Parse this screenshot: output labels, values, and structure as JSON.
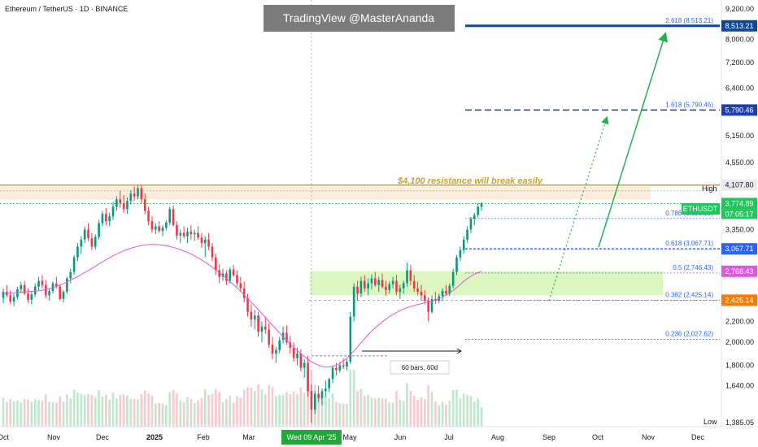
{
  "header": {
    "symbol_title": "Ethereum / TetherUS · 1D · BINANCE",
    "watermark": "TradingView @MasterAnanda"
  },
  "annotations": {
    "resistance_note": "$4,100 resistance will break easily",
    "range_measure": "60 bars, 60d",
    "date_highlight": "Wed 09 Apr '25",
    "high_label": "High",
    "low_label": "Low",
    "symbol_tag": "ETHUSDT",
    "countdown": "07:05:17"
  },
  "colors": {
    "up_candle": "#089981",
    "down_candle": "#f23645",
    "moving_average": "#e056e0",
    "resistance": "#c9a227",
    "support_zone": "#d7f5b8",
    "fib_line": "#2962ff",
    "target_line": "#0d47a1",
    "projection_arrow": "#22b14c"
  },
  "chart_data": {
    "type": "candlestick",
    "title": "Ethereum / TetherUS · 1D · BINANCE",
    "x_tick_labels": [
      "Oct",
      "Nov",
      "Dec",
      "2025",
      "Feb",
      "Mar",
      "Apr",
      "May",
      "Jun",
      "Jul",
      "Aug",
      "Sep",
      "Oct",
      "Nov",
      "Dec"
    ],
    "y_tick_labels": [
      "9,200.00",
      "8,000.00",
      "7,200.00",
      "6,400.00",
      "5,150.00",
      "4,550.00",
      "3,350.00",
      "2,200.00",
      "2,000.00",
      "1,800.00",
      "1,640.00",
      "1,385.05"
    ],
    "y_scale": "log",
    "ylim": [
      1385,
      9300
    ],
    "price_tags": [
      {
        "label": "8,513.21",
        "value": 8513.21,
        "color": "#0d47a1"
      },
      {
        "label": "5,790.46",
        "value": 5790.46,
        "color": "#1e3fae"
      },
      {
        "label": "4,107.80",
        "value": 4107.8,
        "color": "#e9e9ee"
      },
      {
        "label": "3,774.89",
        "value": 3774.89,
        "color": "#22c55e"
      },
      {
        "label": "3,067.71",
        "value": 3067.71,
        "color": "#2962ff"
      },
      {
        "label": "2,768.43",
        "value": 2768.43,
        "color": "#e056e0"
      },
      {
        "label": "2,425.14",
        "value": 2425.14,
        "color": "#f57c00"
      }
    ],
    "fib_levels": [
      {
        "label": "2.618 (8,513.21)",
        "value": 8513.21
      },
      {
        "label": "1.618 (5,790.46)",
        "value": 5790.46
      },
      {
        "label": "0.786 (3,525.13)",
        "value": 3525.13
      },
      {
        "label": "0.618 (3,067.71)",
        "value": 3067.71
      },
      {
        "label": "0.5 (2,746.43)",
        "value": 2746.43
      },
      {
        "label": "0.382 (2,425.14)",
        "value": 2425.14
      },
      {
        "label": "0.236 (2,027.62)",
        "value": 2027.62
      }
    ],
    "resistance_level": 4107.8,
    "current_price": 3774.89,
    "low_price": 1385.05,
    "candles": [
      {
        "o": 2450,
        "h": 2560,
        "l": 2390,
        "c": 2520
      },
      {
        "o": 2520,
        "h": 2600,
        "l": 2460,
        "c": 2480
      },
      {
        "o": 2480,
        "h": 2540,
        "l": 2380,
        "c": 2410
      },
      {
        "o": 2410,
        "h": 2500,
        "l": 2360,
        "c": 2460
      },
      {
        "o": 2460,
        "h": 2580,
        "l": 2430,
        "c": 2550
      },
      {
        "o": 2550,
        "h": 2640,
        "l": 2500,
        "c": 2600
      },
      {
        "o": 2600,
        "h": 2650,
        "l": 2480,
        "c": 2500
      },
      {
        "o": 2500,
        "h": 2560,
        "l": 2400,
        "c": 2430
      },
      {
        "o": 2430,
        "h": 2520,
        "l": 2380,
        "c": 2490
      },
      {
        "o": 2490,
        "h": 2620,
        "l": 2460,
        "c": 2580
      },
      {
        "o": 2580,
        "h": 2700,
        "l": 2540,
        "c": 2650
      },
      {
        "o": 2650,
        "h": 2720,
        "l": 2560,
        "c": 2600
      },
      {
        "o": 2600,
        "h": 2660,
        "l": 2450,
        "c": 2480
      },
      {
        "o": 2480,
        "h": 2560,
        "l": 2420,
        "c": 2530
      },
      {
        "o": 2530,
        "h": 2640,
        "l": 2500,
        "c": 2620
      },
      {
        "o": 2620,
        "h": 2700,
        "l": 2560,
        "c": 2580
      },
      {
        "o": 2580,
        "h": 2610,
        "l": 2420,
        "c": 2440
      },
      {
        "o": 2440,
        "h": 2540,
        "l": 2400,
        "c": 2520
      },
      {
        "o": 2520,
        "h": 2700,
        "l": 2500,
        "c": 2680
      },
      {
        "o": 2680,
        "h": 2800,
        "l": 2620,
        "c": 2760
      },
      {
        "o": 2760,
        "h": 2980,
        "l": 2720,
        "c": 2950
      },
      {
        "o": 2950,
        "h": 3150,
        "l": 2900,
        "c": 3100
      },
      {
        "o": 3100,
        "h": 3250,
        "l": 3000,
        "c": 3200
      },
      {
        "o": 3200,
        "h": 3400,
        "l": 3150,
        "c": 3350
      },
      {
        "o": 3350,
        "h": 3450,
        "l": 3180,
        "c": 3220
      },
      {
        "o": 3220,
        "h": 3300,
        "l": 3050,
        "c": 3100
      },
      {
        "o": 3100,
        "h": 3280,
        "l": 3060,
        "c": 3240
      },
      {
        "o": 3240,
        "h": 3500,
        "l": 3200,
        "c": 3450
      },
      {
        "o": 3450,
        "h": 3650,
        "l": 3400,
        "c": 3600
      },
      {
        "o": 3600,
        "h": 3700,
        "l": 3420,
        "c": 3480
      },
      {
        "o": 3480,
        "h": 3620,
        "l": 3400,
        "c": 3560
      },
      {
        "o": 3560,
        "h": 3800,
        "l": 3500,
        "c": 3720
      },
      {
        "o": 3720,
        "h": 3900,
        "l": 3650,
        "c": 3850
      },
      {
        "o": 3850,
        "h": 4000,
        "l": 3700,
        "c": 3780
      },
      {
        "o": 3780,
        "h": 3920,
        "l": 3620,
        "c": 3680
      },
      {
        "o": 3680,
        "h": 3880,
        "l": 3600,
        "c": 3820
      },
      {
        "o": 3820,
        "h": 4010,
        "l": 3760,
        "c": 3950
      },
      {
        "o": 3950,
        "h": 4080,
        "l": 3820,
        "c": 3900
      },
      {
        "o": 3900,
        "h": 4100,
        "l": 3850,
        "c": 4050
      },
      {
        "o": 4050,
        "h": 4107,
        "l": 3780,
        "c": 3850
      },
      {
        "o": 3850,
        "h": 3950,
        "l": 3600,
        "c": 3650
      },
      {
        "o": 3650,
        "h": 3720,
        "l": 3420,
        "c": 3480
      },
      {
        "o": 3480,
        "h": 3560,
        "l": 3300,
        "c": 3350
      },
      {
        "o": 3350,
        "h": 3450,
        "l": 3280,
        "c": 3400
      },
      {
        "o": 3400,
        "h": 3480,
        "l": 3300,
        "c": 3330
      },
      {
        "o": 3330,
        "h": 3420,
        "l": 3250,
        "c": 3380
      },
      {
        "o": 3380,
        "h": 3500,
        "l": 3340,
        "c": 3460
      },
      {
        "o": 3460,
        "h": 3720,
        "l": 3420,
        "c": 3680
      },
      {
        "o": 3680,
        "h": 3740,
        "l": 3400,
        "c": 3420
      },
      {
        "o": 3420,
        "h": 3480,
        "l": 3200,
        "c": 3260
      },
      {
        "o": 3260,
        "h": 3350,
        "l": 3150,
        "c": 3300
      },
      {
        "o": 3300,
        "h": 3400,
        "l": 3220,
        "c": 3250
      },
      {
        "o": 3250,
        "h": 3380,
        "l": 3150,
        "c": 3320
      },
      {
        "o": 3320,
        "h": 3420,
        "l": 3200,
        "c": 3280
      },
      {
        "o": 3280,
        "h": 3350,
        "l": 3180,
        "c": 3300
      },
      {
        "o": 3300,
        "h": 3400,
        "l": 3200,
        "c": 3230
      },
      {
        "o": 3230,
        "h": 3300,
        "l": 3080,
        "c": 3150
      },
      {
        "o": 3150,
        "h": 3250,
        "l": 2950,
        "c": 3200
      },
      {
        "o": 3200,
        "h": 3300,
        "l": 3050,
        "c": 3100
      },
      {
        "o": 3100,
        "h": 3150,
        "l": 2900,
        "c": 2950
      },
      {
        "o": 2950,
        "h": 3000,
        "l": 2720,
        "c": 2780
      },
      {
        "o": 2780,
        "h": 2860,
        "l": 2620,
        "c": 2700
      },
      {
        "o": 2700,
        "h": 2800,
        "l": 2650,
        "c": 2740
      },
      {
        "o": 2740,
        "h": 2780,
        "l": 2600,
        "c": 2650
      },
      {
        "o": 2650,
        "h": 2820,
        "l": 2620,
        "c": 2790
      },
      {
        "o": 2790,
        "h": 2850,
        "l": 2700,
        "c": 2720
      },
      {
        "o": 2720,
        "h": 2780,
        "l": 2580,
        "c": 2620
      },
      {
        "o": 2620,
        "h": 2700,
        "l": 2520,
        "c": 2560
      },
      {
        "o": 2560,
        "h": 2640,
        "l": 2400,
        "c": 2450
      },
      {
        "o": 2450,
        "h": 2500,
        "l": 2250,
        "c": 2300
      },
      {
        "o": 2300,
        "h": 2380,
        "l": 2150,
        "c": 2220
      },
      {
        "o": 2220,
        "h": 2320,
        "l": 2120,
        "c": 2260
      },
      {
        "o": 2260,
        "h": 2300,
        "l": 2050,
        "c": 2100
      },
      {
        "o": 2100,
        "h": 2200,
        "l": 2000,
        "c": 2150
      },
      {
        "o": 2150,
        "h": 2250,
        "l": 2080,
        "c": 2120
      },
      {
        "o": 2120,
        "h": 2180,
        "l": 1950,
        "c": 1980
      },
      {
        "o": 1980,
        "h": 2050,
        "l": 1850,
        "c": 1900
      },
      {
        "o": 1900,
        "h": 1960,
        "l": 1820,
        "c": 1930
      },
      {
        "o": 1930,
        "h": 2050,
        "l": 1900,
        "c": 2020
      },
      {
        "o": 2020,
        "h": 2150,
        "l": 1990,
        "c": 2090
      },
      {
        "o": 2090,
        "h": 2160,
        "l": 1980,
        "c": 2000
      },
      {
        "o": 2000,
        "h": 2060,
        "l": 1900,
        "c": 1950
      },
      {
        "o": 1950,
        "h": 2000,
        "l": 1830,
        "c": 1860
      },
      {
        "o": 1860,
        "h": 1950,
        "l": 1800,
        "c": 1900
      },
      {
        "o": 1900,
        "h": 1940,
        "l": 1750,
        "c": 1780
      },
      {
        "o": 1780,
        "h": 1850,
        "l": 1700,
        "c": 1820
      },
      {
        "o": 1820,
        "h": 1880,
        "l": 1560,
        "c": 1600
      },
      {
        "o": 1600,
        "h": 1650,
        "l": 1385,
        "c": 1470
      },
      {
        "o": 1470,
        "h": 1600,
        "l": 1440,
        "c": 1580
      },
      {
        "o": 1580,
        "h": 1640,
        "l": 1520,
        "c": 1550
      },
      {
        "o": 1550,
        "h": 1620,
        "l": 1500,
        "c": 1600
      },
      {
        "o": 1600,
        "h": 1680,
        "l": 1560,
        "c": 1620
      },
      {
        "o": 1620,
        "h": 1700,
        "l": 1590,
        "c": 1690
      },
      {
        "o": 1690,
        "h": 1800,
        "l": 1660,
        "c": 1780
      },
      {
        "o": 1780,
        "h": 1820,
        "l": 1720,
        "c": 1760
      },
      {
        "o": 1760,
        "h": 1830,
        "l": 1740,
        "c": 1800
      },
      {
        "o": 1800,
        "h": 1860,
        "l": 1770,
        "c": 1790
      },
      {
        "o": 1790,
        "h": 1850,
        "l": 1760,
        "c": 1830
      },
      {
        "o": 1830,
        "h": 2300,
        "l": 1810,
        "c": 2250
      },
      {
        "o": 2250,
        "h": 2620,
        "l": 2200,
        "c": 2580
      },
      {
        "o": 2580,
        "h": 2650,
        "l": 2420,
        "c": 2500
      },
      {
        "o": 2500,
        "h": 2700,
        "l": 2460,
        "c": 2650
      },
      {
        "o": 2650,
        "h": 2720,
        "l": 2520,
        "c": 2560
      },
      {
        "o": 2560,
        "h": 2680,
        "l": 2480,
        "c": 2620
      },
      {
        "o": 2620,
        "h": 2730,
        "l": 2550,
        "c": 2680
      },
      {
        "o": 2680,
        "h": 2760,
        "l": 2580,
        "c": 2600
      },
      {
        "o": 2600,
        "h": 2700,
        "l": 2520,
        "c": 2660
      },
      {
        "o": 2660,
        "h": 2740,
        "l": 2560,
        "c": 2580
      },
      {
        "o": 2580,
        "h": 2650,
        "l": 2480,
        "c": 2540
      },
      {
        "o": 2540,
        "h": 2640,
        "l": 2500,
        "c": 2610
      },
      {
        "o": 2610,
        "h": 2700,
        "l": 2560,
        "c": 2650
      },
      {
        "o": 2650,
        "h": 2720,
        "l": 2480,
        "c": 2520
      },
      {
        "o": 2520,
        "h": 2600,
        "l": 2440,
        "c": 2560
      },
      {
        "o": 2560,
        "h": 2650,
        "l": 2500,
        "c": 2620
      },
      {
        "o": 2620,
        "h": 2880,
        "l": 2580,
        "c": 2780
      },
      {
        "o": 2780,
        "h": 2850,
        "l": 2600,
        "c": 2650
      },
      {
        "o": 2650,
        "h": 2720,
        "l": 2520,
        "c": 2560
      },
      {
        "o": 2560,
        "h": 2640,
        "l": 2480,
        "c": 2520
      },
      {
        "o": 2520,
        "h": 2600,
        "l": 2420,
        "c": 2480
      },
      {
        "o": 2480,
        "h": 2540,
        "l": 2380,
        "c": 2420
      },
      {
        "o": 2420,
        "h": 2460,
        "l": 2200,
        "c": 2300
      },
      {
        "o": 2300,
        "h": 2480,
        "l": 2280,
        "c": 2440
      },
      {
        "o": 2440,
        "h": 2520,
        "l": 2380,
        "c": 2420
      },
      {
        "o": 2420,
        "h": 2500,
        "l": 2390,
        "c": 2470
      },
      {
        "o": 2470,
        "h": 2560,
        "l": 2420,
        "c": 2530
      },
      {
        "o": 2530,
        "h": 2600,
        "l": 2480,
        "c": 2500
      },
      {
        "o": 2500,
        "h": 2620,
        "l": 2470,
        "c": 2590
      },
      {
        "o": 2590,
        "h": 2800,
        "l": 2560,
        "c": 2760
      },
      {
        "o": 2760,
        "h": 2980,
        "l": 2720,
        "c": 2950
      },
      {
        "o": 2950,
        "h": 3100,
        "l": 2900,
        "c": 3050
      },
      {
        "o": 3050,
        "h": 3250,
        "l": 3000,
        "c": 3200
      },
      {
        "o": 3200,
        "h": 3400,
        "l": 3150,
        "c": 3350
      },
      {
        "o": 3350,
        "h": 3550,
        "l": 3300,
        "c": 3520
      },
      {
        "o": 3520,
        "h": 3620,
        "l": 3420,
        "c": 3580
      },
      {
        "o": 3580,
        "h": 3780,
        "l": 3540,
        "c": 3720
      },
      {
        "o": 3720,
        "h": 3800,
        "l": 3650,
        "c": 3774.89
      }
    ],
    "ma": [
      2500,
      2505,
      2510,
      2515,
      2520,
      2525,
      2530,
      2540,
      2555,
      2575,
      2600,
      2630,
      2665,
      2700,
      2740,
      2780,
      2825,
      2870,
      2915,
      2960,
      3000,
      3035,
      3065,
      3090,
      3110,
      3125,
      3130,
      3128,
      3120,
      3105,
      3085,
      3060,
      3030,
      2995,
      2955,
      2910,
      2860,
      2805,
      2750,
      2690,
      2630,
      2570,
      2505,
      2440,
      2375,
      2310,
      2245,
      2180,
      2120,
      2060,
      2005,
      1955,
      1910,
      1870,
      1835,
      1808,
      1790,
      1785,
      1792,
      1812,
      1845,
      1890,
      1945,
      2005,
      2065,
      2120,
      2170,
      2215,
      2255,
      2290,
      2320,
      2345,
      2365,
      2380,
      2395,
      2410,
      2430,
      2455,
      2490,
      2535,
      2590,
      2650,
      2700,
      2740,
      2768.43
    ]
  }
}
